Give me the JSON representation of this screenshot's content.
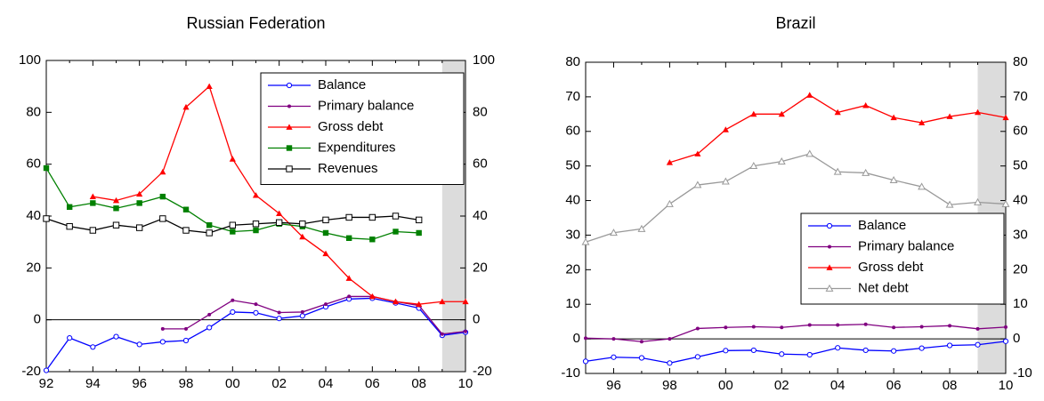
{
  "chart_data": [
    {
      "type": "line",
      "title": "Russian Federation",
      "categories": [
        "92",
        null,
        "94",
        null,
        "96",
        null,
        "98",
        null,
        "00",
        null,
        "02",
        null,
        "04",
        null,
        "06",
        null,
        "08",
        null,
        "10"
      ],
      "ylim": [
        -20,
        100
      ],
      "yticks": [
        -20,
        0,
        20,
        40,
        60,
        80,
        100
      ],
      "right_axis": true,
      "legend": "upper right",
      "forecast_shade": true,
      "series": [
        {
          "name": "Balance",
          "color": "#0000ff",
          "marker": "open-circle",
          "values": [
            -19.5,
            -7,
            -10.5,
            -6.5,
            -9.5,
            -8.5,
            -8,
            -3,
            3,
            2.7,
            0.5,
            1.5,
            5,
            8,
            8.3,
            6.5,
            4.5,
            -6,
            -4.8
          ]
        },
        {
          "name": "Primary balance",
          "color": "#800080",
          "marker": "dot",
          "values": [
            null,
            null,
            null,
            null,
            null,
            -3.5,
            -3.5,
            2,
            7.5,
            6,
            2.8,
            3,
            6,
            9,
            9,
            7,
            5.5,
            -5.5,
            -4.5
          ]
        },
        {
          "name": "Gross debt",
          "color": "#ff0000",
          "marker": "triangle",
          "values": [
            null,
            null,
            47.5,
            46,
            48.5,
            57,
            82,
            90,
            62,
            48,
            41,
            32,
            25.5,
            16,
            9,
            7,
            6,
            7,
            7
          ]
        },
        {
          "name": "Expenditures",
          "color": "#008000",
          "marker": "square",
          "values": [
            58.5,
            43.5,
            45,
            43,
            45,
            47.5,
            42.5,
            36.5,
            34,
            34.5,
            37,
            36,
            33.5,
            31.5,
            31,
            34,
            33.5,
            null,
            null
          ]
        },
        {
          "name": "Revenues",
          "color": "#000000",
          "marker": "open-square",
          "values": [
            39,
            36,
            34.5,
            36.5,
            35.5,
            39,
            34.5,
            33.5,
            36.5,
            37,
            37.5,
            37,
            38.5,
            39.5,
            39.5,
            40,
            38.5,
            null,
            null
          ]
        }
      ]
    },
    {
      "type": "line",
      "title": "Brazil",
      "categories": [
        null,
        "96",
        null,
        "98",
        null,
        "00",
        null,
        "02",
        null,
        "04",
        null,
        "06",
        null,
        "08",
        null,
        "10"
      ],
      "ylim": [
        -10,
        80
      ],
      "yticks": [
        -10,
        0,
        10,
        20,
        30,
        40,
        50,
        60,
        70,
        80
      ],
      "right_axis": true,
      "legend": "lower right",
      "forecast_shade": true,
      "series": [
        {
          "name": "Balance",
          "color": "#0000ff",
          "marker": "open-circle",
          "values": [
            -6.5,
            -5.3,
            -5.5,
            -7,
            -5.2,
            -3.4,
            -3.3,
            -4.4,
            -4.6,
            -2.6,
            -3.3,
            -3.5,
            -2.7,
            -1.9,
            -1.7,
            -0.7
          ]
        },
        {
          "name": "Primary balance",
          "color": "#800080",
          "marker": "dot",
          "values": [
            0.2,
            0,
            -0.8,
            0,
            3,
            3.3,
            3.5,
            3.3,
            4,
            4,
            4.2,
            3.3,
            3.5,
            3.8,
            2.9,
            3.4
          ]
        },
        {
          "name": "Gross debt",
          "color": "#ff0000",
          "marker": "triangle",
          "values": [
            null,
            null,
            null,
            51,
            53.5,
            60.5,
            65,
            65,
            70.5,
            65.5,
            67.5,
            64,
            62.5,
            64.3,
            65.5,
            64
          ]
        },
        {
          "name": "Net debt",
          "color": "#999999",
          "marker": "open-triangle",
          "values": [
            28,
            30.7,
            31.8,
            39,
            44.5,
            45.5,
            50,
            51.3,
            53.5,
            48.3,
            48,
            45.9,
            44,
            38.8,
            39.5,
            39
          ]
        }
      ]
    }
  ]
}
